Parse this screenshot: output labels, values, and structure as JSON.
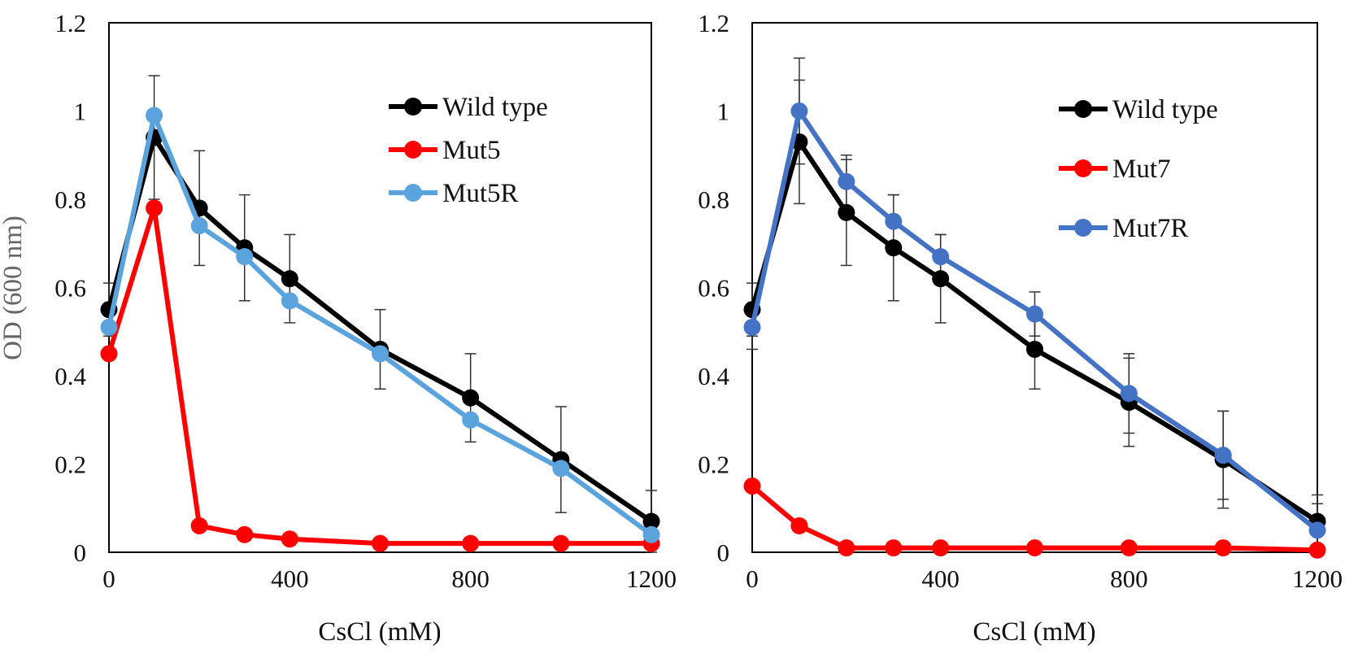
{
  "chart_data": [
    {
      "type": "line",
      "panel": "left",
      "xlabel": "CsCl (mM)",
      "ylabel": "OD (600 nm)",
      "xlim": [
        0,
        1200
      ],
      "ylim": [
        0,
        1.2
      ],
      "xticks": [
        0,
        400,
        800,
        1200
      ],
      "yticks": [
        0,
        0.2,
        0.4,
        0.6,
        0.8,
        1,
        1.2
      ],
      "ytick_labels": [
        "0",
        "0.2",
        "0.4",
        "0.6",
        "0.8",
        "1",
        "1.2"
      ],
      "legend_position": "top-right",
      "x": [
        0,
        100,
        200,
        300,
        400,
        600,
        800,
        1000,
        1200
      ],
      "series": [
        {
          "name": "Wild type",
          "color": "#000000",
          "values": [
            0.55,
            0.94,
            0.78,
            0.69,
            0.62,
            0.46,
            0.35,
            0.21,
            0.07
          ],
          "error": [
            0.06,
            0.14,
            0.13,
            0.12,
            0.1,
            0.09,
            0.1,
            0.12,
            0.07
          ]
        },
        {
          "name": "Mut5",
          "color": "#ff0000",
          "values": [
            0.45,
            0.78,
            0.06,
            0.04,
            0.03,
            0.02,
            0.02,
            0.02,
            0.02
          ]
        },
        {
          "name": "Mut5R",
          "color": "#5ba3dc",
          "values": [
            0.51,
            0.99,
            0.74,
            0.67,
            0.57,
            0.45,
            0.3,
            0.19,
            0.04
          ]
        }
      ]
    },
    {
      "type": "line",
      "panel": "right",
      "xlabel": "CsCl (mM)",
      "ylabel": "",
      "xlim": [
        0,
        1200
      ],
      "ylim": [
        0,
        1.2
      ],
      "xticks": [
        0,
        400,
        800,
        1200
      ],
      "yticks": [
        0,
        0.2,
        0.4,
        0.6,
        0.8,
        1,
        1.2
      ],
      "ytick_labels": [
        "0",
        "0.2",
        "0.4",
        "0.6",
        "0.8",
        "1",
        "1.2"
      ],
      "legend_position": "top-right",
      "x": [
        0,
        100,
        200,
        300,
        400,
        600,
        800,
        1000,
        1200
      ],
      "series": [
        {
          "name": "Wild type",
          "color": "#000000",
          "values": [
            0.55,
            0.93,
            0.77,
            0.69,
            0.62,
            0.46,
            0.34,
            0.21,
            0.07
          ],
          "error": [
            0.06,
            0.14,
            0.12,
            0.12,
            0.1,
            0.09,
            0.1,
            0.11,
            0.06
          ]
        },
        {
          "name": "Mut7",
          "color": "#ff0000",
          "values": [
            0.15,
            0.06,
            0.01,
            0.01,
            0.01,
            0.01,
            0.01,
            0.01,
            0.005
          ]
        },
        {
          "name": "Mut7R",
          "color": "#4472c4",
          "values": [
            0.51,
            1.0,
            0.84,
            0.75,
            0.67,
            0.54,
            0.36,
            0.22,
            0.05
          ],
          "error": [
            0.05,
            0.12,
            0.06,
            0.06,
            0.05,
            0.05,
            0.09,
            0.1,
            0.06
          ]
        }
      ]
    }
  ]
}
